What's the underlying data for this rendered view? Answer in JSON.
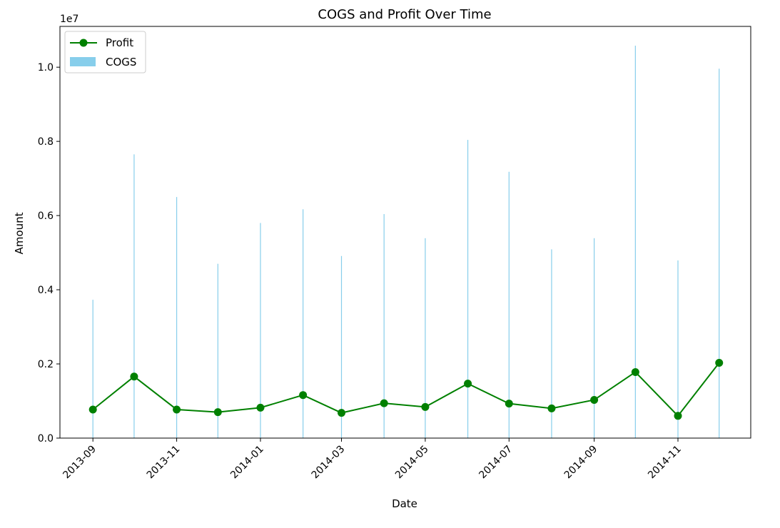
{
  "chart_data": {
    "type": "bar",
    "title": "COGS and Profit Over Time",
    "xlabel": "Date",
    "ylabel": "Amount",
    "y_offset_label": "1e7",
    "ylim": [
      0,
      11100000
    ],
    "xlim": [
      "2013-08-08",
      "2014-12-24"
    ],
    "y_ticks": [
      0,
      2000000,
      4000000,
      6000000,
      8000000,
      10000000
    ],
    "y_tick_labels": [
      "0.0",
      "0.2",
      "0.4",
      "0.6",
      "0.8",
      "1.0"
    ],
    "x_ticks": [
      "2013-09-01",
      "2013-11-01",
      "2014-01-01",
      "2014-03-01",
      "2014-05-01",
      "2014-07-01",
      "2014-09-01",
      "2014-11-01"
    ],
    "x_tick_labels": [
      "2013-09",
      "2013-11",
      "2014-01",
      "2014-03",
      "2014-05",
      "2014-07",
      "2014-09",
      "2014-11"
    ],
    "legend": {
      "position": "upper-left",
      "entries": [
        {
          "label": "Profit",
          "kind": "line-marker",
          "color": "#008000"
        },
        {
          "label": "COGS",
          "kind": "bar",
          "color": "#87ceeb"
        }
      ]
    },
    "grid": false,
    "dates": [
      "2013-09-01",
      "2013-10-01",
      "2013-11-01",
      "2013-12-01",
      "2014-01-01",
      "2014-02-01",
      "2014-03-01",
      "2014-04-01",
      "2014-05-01",
      "2014-06-01",
      "2014-07-01",
      "2014-08-01",
      "2014-09-01",
      "2014-10-01",
      "2014-11-01",
      "2014-12-01"
    ],
    "series": [
      {
        "name": "COGS",
        "type": "bar",
        "color": "#87ceeb",
        "values": [
          3730000,
          7650000,
          6500000,
          4700000,
          5800000,
          6170000,
          4910000,
          6040000,
          5390000,
          8040000,
          7180000,
          5090000,
          5390000,
          10580000,
          4790000,
          9960000
        ]
      },
      {
        "name": "Profit",
        "type": "line",
        "color": "#008000",
        "marker": "circle",
        "values": [
          770000,
          1660000,
          770000,
          700000,
          820000,
          1160000,
          680000,
          940000,
          840000,
          1470000,
          930000,
          800000,
          1030000,
          1780000,
          600000,
          2030000
        ]
      }
    ]
  }
}
